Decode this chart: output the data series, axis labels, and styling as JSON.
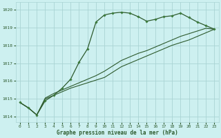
{
  "background_color": "#cdf0f0",
  "grid_color": "#aad4d4",
  "line_color": "#2d5a2d",
  "marker_color": "#3a7a3a",
  "xlabel": "Graphe pression niveau de la mer (hPa)",
  "ylim": [
    1013.7,
    1020.4
  ],
  "yticks": [
    1014,
    1015,
    1016,
    1017,
    1018,
    1019,
    1020
  ],
  "xticks": [
    0,
    1,
    2,
    3,
    4,
    5,
    6,
    7,
    8,
    9,
    10,
    11,
    12,
    13,
    14,
    15,
    16,
    17,
    18,
    19,
    20,
    21,
    22,
    23
  ],
  "series1_x": [
    0,
    1,
    2,
    3,
    4,
    5,
    6,
    7,
    8,
    9,
    10,
    11,
    12,
    13,
    14,
    15,
    16,
    17,
    18,
    19,
    20,
    21,
    22,
    23
  ],
  "series1_y": [
    1014.8,
    1014.5,
    1014.1,
    1014.9,
    1015.2,
    1015.6,
    1016.1,
    1017.05,
    1017.8,
    1019.3,
    1019.7,
    1019.8,
    1019.85,
    1019.8,
    1019.6,
    1019.35,
    1019.45,
    1019.6,
    1019.65,
    1019.8,
    1019.55,
    1019.3,
    1019.1,
    1018.9
  ],
  "series2_x": [
    0,
    1,
    2,
    3,
    4,
    5,
    6,
    7,
    8,
    9,
    10,
    11,
    12,
    13,
    14,
    15,
    16,
    17,
    18,
    19,
    20,
    21,
    22,
    23
  ],
  "series2_y": [
    1014.8,
    1014.5,
    1014.1,
    1015.0,
    1015.2,
    1015.4,
    1015.6,
    1015.75,
    1015.9,
    1016.05,
    1016.2,
    1016.5,
    1016.8,
    1017.0,
    1017.2,
    1017.4,
    1017.6,
    1017.8,
    1018.0,
    1018.15,
    1018.3,
    1018.5,
    1018.7,
    1018.9
  ],
  "series3_x": [
    0,
    1,
    2,
    3,
    4,
    5,
    6,
    7,
    8,
    9,
    10,
    11,
    12,
    13,
    14,
    15,
    16,
    17,
    18,
    19,
    20,
    21,
    22,
    23
  ],
  "series3_y": [
    1014.8,
    1014.5,
    1014.1,
    1015.05,
    1015.3,
    1015.5,
    1015.7,
    1015.9,
    1016.1,
    1016.3,
    1016.55,
    1016.85,
    1017.15,
    1017.35,
    1017.55,
    1017.7,
    1017.9,
    1018.1,
    1018.3,
    1018.5,
    1018.65,
    1018.8,
    1018.95,
    1018.9
  ]
}
